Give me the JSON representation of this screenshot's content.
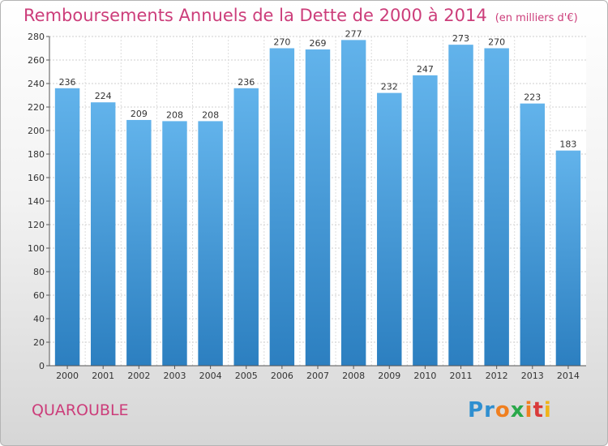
{
  "chart_data": {
    "type": "bar",
    "title": "Remboursements Annuels de la Dette de 2000 à 2014",
    "unit_note": "(en milliers d'€)",
    "categories": [
      "2000",
      "2001",
      "2002",
      "2003",
      "2004",
      "2005",
      "2006",
      "2007",
      "2008",
      "2009",
      "2010",
      "2011",
      "2012",
      "2013",
      "2014"
    ],
    "values": [
      236,
      224,
      209,
      208,
      208,
      236,
      270,
      269,
      277,
      232,
      247,
      273,
      270,
      223,
      183
    ],
    "ylim": [
      0,
      280
    ],
    "yticks": [
      0,
      20,
      40,
      60,
      80,
      100,
      120,
      140,
      160,
      180,
      200,
      220,
      240,
      260,
      280
    ],
    "grid": true,
    "bar_color_top": "#62b3eb",
    "bar_color_bottom": "#2c7fc0"
  },
  "city": "QUAROUBLE",
  "logo": {
    "letters": [
      "P",
      "r",
      "o",
      "x",
      "i",
      "t",
      "i"
    ],
    "colors": [
      "#2f8fd0",
      "#2f8fd0",
      "#f07f1f",
      "#2aa84a",
      "#f07f1f",
      "#d93a3a",
      "#f0b419"
    ]
  },
  "colors": {
    "title": "#cc3d7a",
    "axis": "#555555"
  }
}
